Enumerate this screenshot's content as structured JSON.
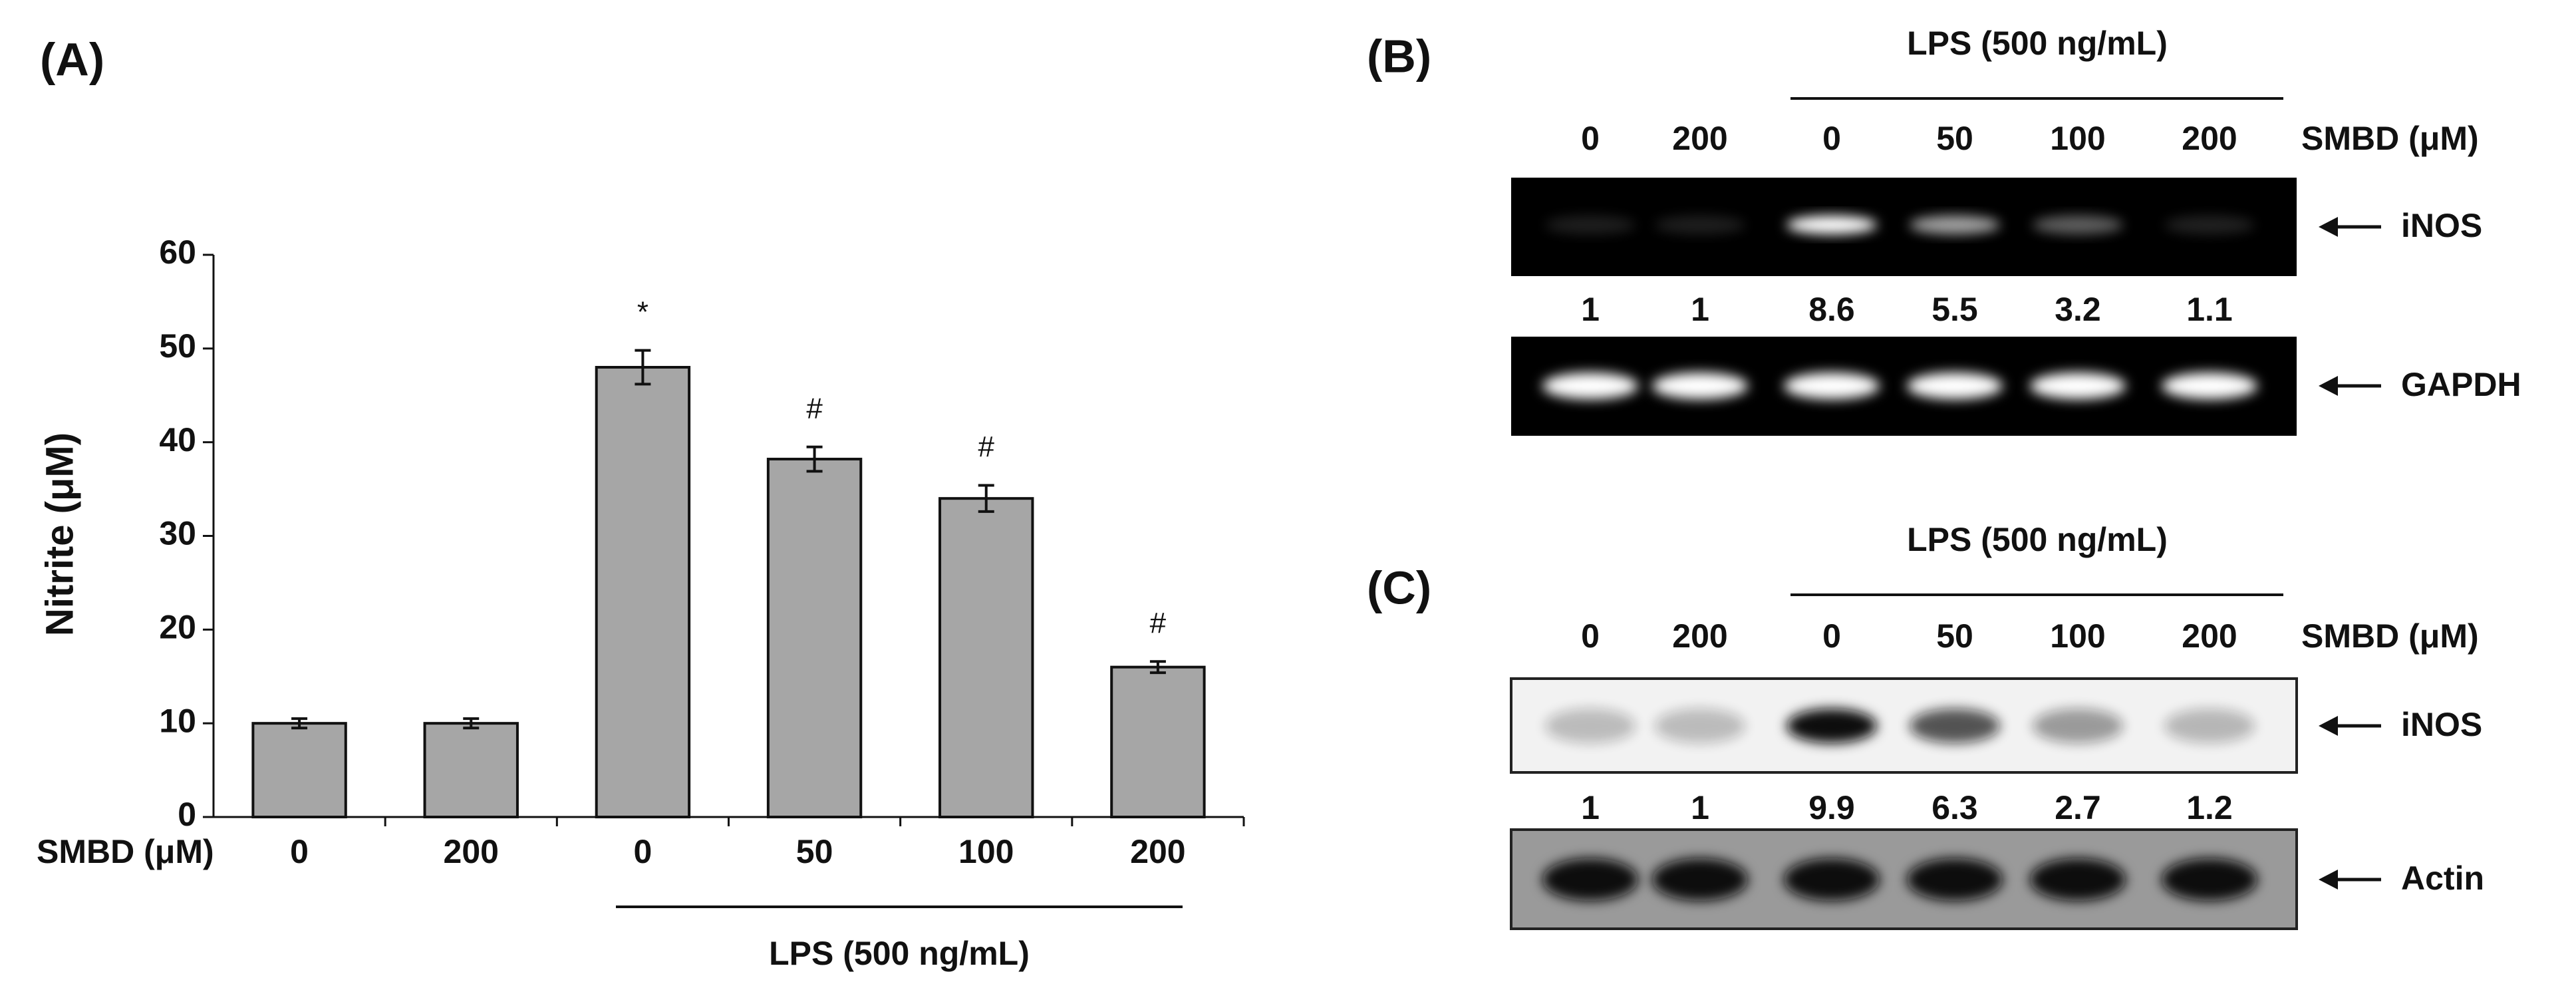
{
  "chart_data": {
    "type": "bar",
    "title": "(A)",
    "y_label": "Nitrite (μM)",
    "x_label": "SMBD (μM)",
    "categories": [
      "0",
      "200",
      "0",
      "50",
      "100",
      "200"
    ],
    "values": [
      10,
      10,
      48,
      38.2,
      34,
      16
    ],
    "errors": [
      0.5,
      0.5,
      1.8,
      1.3,
      1.4,
      0.6
    ],
    "annotations": [
      null,
      null,
      "*",
      "#",
      "#",
      "#"
    ],
    "group_label": "LPS (500 ng/mL)",
    "color": "#a6a6a6",
    "ylim": [
      0,
      60
    ],
    "yticks": [
      0,
      10,
      20,
      30,
      40,
      50,
      60
    ]
  },
  "panel_b": {
    "label": "(B)",
    "group_label": "LPS (500 ng/mL)",
    "treatment_label": "SMBD (μM)",
    "lanes": [
      "0",
      "200",
      "0",
      "50",
      "100",
      "200"
    ],
    "target": "iNOS",
    "ratios": [
      1,
      1,
      8.6,
      5.5,
      3.2,
      1.1
    ],
    "control": "GAPDH"
  },
  "panel_c": {
    "label": "(C)",
    "group_label": "LPS (500 ng/mL)",
    "treatment_label": "SMBD (μM)",
    "lanes": [
      "0",
      "200",
      "0",
      "50",
      "100",
      "200"
    ],
    "target": "iNOS",
    "ratios": [
      1,
      1,
      9.9,
      6.3,
      2.7,
      1.2
    ],
    "control": "Actin"
  }
}
